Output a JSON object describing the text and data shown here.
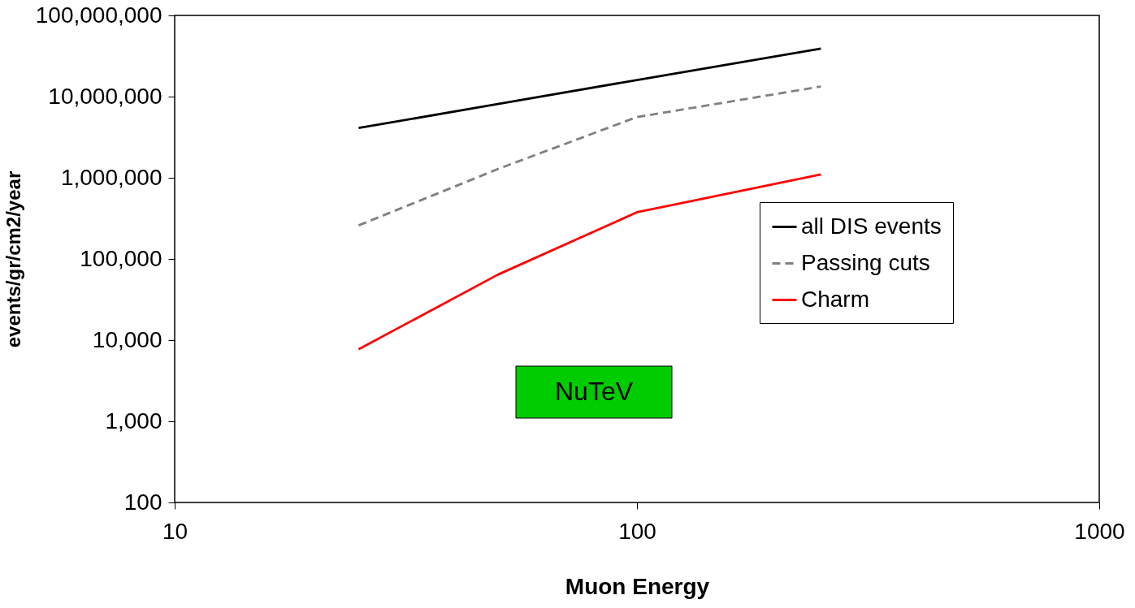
{
  "chart_data": {
    "type": "line",
    "xlabel": "Muon Energy",
    "ylabel": "events/gr/cm2/year",
    "x": [
      25,
      50,
      100,
      250
    ],
    "series": [
      {
        "name": "all DIS events",
        "color": "#000000",
        "line_style": "solid",
        "values": [
          4100000,
          8100000,
          16000000,
          39000000
        ]
      },
      {
        "name": "Passing cuts",
        "color": "#808080",
        "line_style": "dashed",
        "values": [
          259000,
          1280000,
          5600000,
          13300000
        ]
      },
      {
        "name": "Charm",
        "color": "#ff0000",
        "line_style": "solid",
        "values": [
          7700,
          64000,
          376000,
          1100000
        ]
      }
    ],
    "log": "xy",
    "xlim": [
      10,
      1000
    ],
    "xticks": [
      10,
      100,
      1000
    ],
    "ylim": [
      100,
      100000000
    ],
    "yticks": [
      {
        "value": 100,
        "label": "100"
      },
      {
        "value": 1000,
        "label": "1,000"
      },
      {
        "value": 10000,
        "label": "10,000"
      },
      {
        "value": 100000,
        "label": "100,000"
      },
      {
        "value": 1000000,
        "label": "1,000,000"
      },
      {
        "value": 10000000,
        "label": "10,000,000"
      },
      {
        "value": 100000000,
        "label": "100,000,000"
      }
    ],
    "grid": false,
    "legend": "right",
    "marker": "none",
    "annotations": [
      "NuTeV"
    ]
  }
}
